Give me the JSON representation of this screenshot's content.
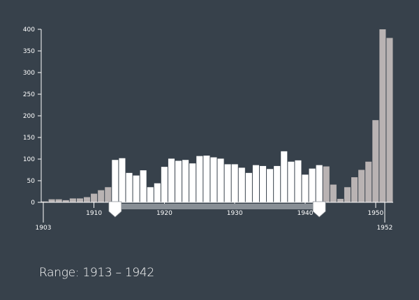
{
  "chart_data": {
    "type": "bar",
    "title": "",
    "xlabel": "",
    "ylabel": "",
    "x": [
      1903,
      1904,
      1905,
      1906,
      1907,
      1908,
      1909,
      1910,
      1911,
      1912,
      1913,
      1914,
      1915,
      1916,
      1917,
      1918,
      1919,
      1920,
      1921,
      1922,
      1923,
      1924,
      1925,
      1926,
      1927,
      1928,
      1929,
      1930,
      1931,
      1932,
      1933,
      1934,
      1935,
      1936,
      1937,
      1938,
      1939,
      1940,
      1941,
      1942,
      1943,
      1944,
      1945,
      1946,
      1947,
      1948,
      1949,
      1950,
      1951,
      1952
    ],
    "values": [
      2,
      7,
      7,
      5,
      9,
      9,
      12,
      20,
      28,
      35,
      98,
      102,
      68,
      62,
      74,
      35,
      44,
      82,
      101,
      96,
      98,
      90,
      107,
      108,
      104,
      101,
      88,
      88,
      80,
      68,
      86,
      84,
      77,
      84,
      118,
      94,
      97,
      64,
      78,
      86,
      83,
      41,
      8,
      35,
      58,
      75,
      94,
      190,
      400,
      380
    ],
    "ylim": [
      0,
      400
    ],
    "xlim": [
      1903,
      1952
    ],
    "y_ticks": [
      0,
      50,
      100,
      150,
      200,
      250,
      300,
      350,
      400
    ],
    "x_ticks": [
      1903,
      1910,
      1920,
      1930,
      1940,
      1950,
      1952
    ],
    "selected_range": [
      1913,
      1942
    ],
    "colors": {
      "selected": "#ffffff",
      "unselected": "#b9b3b3",
      "background": "#37414b",
      "brush": "#888f96"
    }
  },
  "range_label": {
    "prefix": "Range: ",
    "start": "1913",
    "separator": " – ",
    "end": "1942"
  }
}
